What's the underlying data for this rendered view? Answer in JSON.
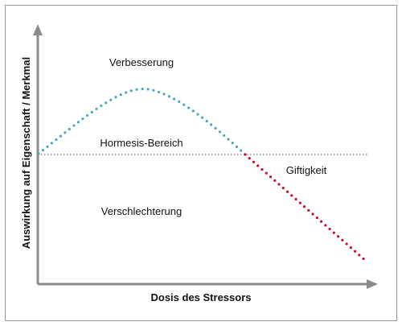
{
  "diagram": {
    "y_axis_label": "Auswirkung auf Eigenschaft / Merkmal",
    "x_axis_label": "Dosis des Stressors",
    "regions": {
      "improvement": "Verbesserung",
      "hormesis": "Hormesis-Bereich",
      "toxicity": "Giftigkeit",
      "deterioration": "Verschlechterung"
    },
    "colors": {
      "beneficial_curve": "#4aa9b8",
      "toxic_curve": "#c8102e",
      "baseline": "#555555",
      "axes": "#8a8a8a",
      "frame": "#999999",
      "text": "#111111"
    }
  }
}
